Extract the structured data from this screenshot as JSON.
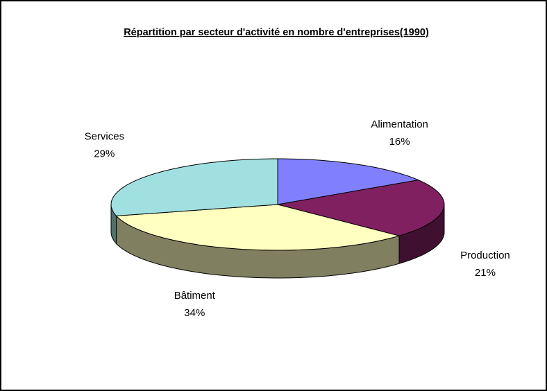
{
  "chart_data": {
    "type": "pie",
    "title": "Répartition par secteur d'activité en nombre d'entreprises(1990)",
    "categories": [
      "Alimentation",
      "Production",
      "Bâtiment",
      "Services"
    ],
    "values": [
      16,
      21,
      34,
      29
    ],
    "value_labels": [
      "16%",
      "21%",
      "34%",
      "29%"
    ],
    "colors": [
      "#8080ff",
      "#802060",
      "#ffffc0",
      "#a0e0e0"
    ]
  }
}
